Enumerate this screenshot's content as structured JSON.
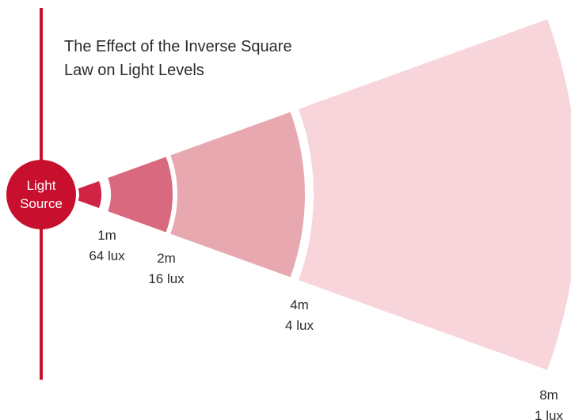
{
  "title_lines": [
    "The Effect of the Inverse Square",
    "Law on Light Levels"
  ],
  "source_lines": [
    "Light",
    "Source"
  ],
  "segments": [
    {
      "distance": "1m",
      "level": "64 lux"
    },
    {
      "distance": "2m",
      "level": "16 lux"
    },
    {
      "distance": "4m",
      "level": "4 lux"
    },
    {
      "distance": "8m",
      "level": "1 lux"
    }
  ]
}
